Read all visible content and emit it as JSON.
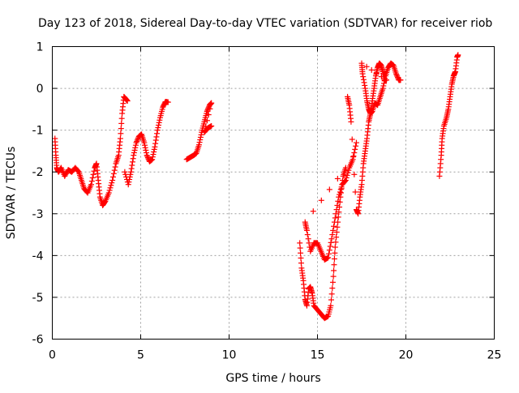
{
  "chart_data": {
    "type": "scatter",
    "title": "Day 123 of 2018, Sidereal Day-to-day VTEC variation (SDTVAR) for receiver riob",
    "xlabel": "GPS time / hours",
    "ylabel": "SDTVAR / TECUs",
    "xlim": [
      0,
      25
    ],
    "ylim": [
      -6,
      1
    ],
    "xticks": [
      0,
      5,
      10,
      15,
      20,
      25
    ],
    "yticks": [
      -6,
      -5,
      -4,
      -3,
      -2,
      -1,
      0,
      1
    ],
    "xtick_labels": [
      "0",
      "5",
      "10",
      "15",
      "20",
      "25"
    ],
    "ytick_labels": [
      "-6",
      "-5",
      "-4",
      "-3",
      "-2",
      "-1",
      "0",
      "1"
    ],
    "grid": true,
    "marker": "+",
    "series_color": "#ff0000",
    "series": [
      {
        "name": "SDTVAR",
        "segments": [
          [
            [
              0.15,
              -1.2
            ],
            [
              0.2,
              -1.6
            ],
            [
              0.25,
              -1.9
            ],
            [
              0.35,
              -2.0
            ],
            [
              0.5,
              -1.9
            ],
            [
              0.7,
              -2.1
            ],
            [
              0.9,
              -1.95
            ],
            [
              1.1,
              -2.0
            ],
            [
              1.3,
              -1.9
            ],
            [
              1.5,
              -2.0
            ],
            [
              1.65,
              -2.2
            ],
            [
              1.8,
              -2.4
            ],
            [
              2.0,
              -2.5
            ],
            [
              2.2,
              -2.3
            ],
            [
              2.4,
              -1.9
            ],
            [
              2.5,
              -1.8
            ],
            [
              2.6,
              -2.2
            ],
            [
              2.7,
              -2.6
            ],
            [
              2.85,
              -2.8
            ],
            [
              3.0,
              -2.7
            ],
            [
              3.2,
              -2.5
            ],
            [
              3.4,
              -2.2
            ],
            [
              3.6,
              -1.8
            ],
            [
              3.75,
              -1.6
            ],
            [
              3.85,
              -1.2
            ],
            [
              3.95,
              -0.6
            ],
            [
              4.05,
              -0.2
            ],
            [
              4.15,
              -0.25
            ],
            [
              4.25,
              -0.3
            ]
          ],
          [
            [
              4.1,
              -2.0
            ],
            [
              4.3,
              -2.3
            ],
            [
              4.45,
              -2.0
            ],
            [
              4.6,
              -1.6
            ],
            [
              4.75,
              -1.3
            ],
            [
              4.9,
              -1.15
            ],
            [
              5.05,
              -1.1
            ],
            [
              5.2,
              -1.3
            ],
            [
              5.35,
              -1.6
            ],
            [
              5.5,
              -1.75
            ],
            [
              5.65,
              -1.7
            ],
            [
              5.8,
              -1.4
            ],
            [
              5.95,
              -1.0
            ],
            [
              6.1,
              -0.7
            ],
            [
              6.25,
              -0.45
            ],
            [
              6.4,
              -0.32
            ],
            [
              6.55,
              -0.33
            ]
          ],
          [
            [
              7.6,
              -1.7
            ],
            [
              7.8,
              -1.65
            ],
            [
              8.0,
              -1.6
            ],
            [
              8.15,
              -1.55
            ],
            [
              8.3,
              -1.35
            ],
            [
              8.45,
              -1.05
            ],
            [
              8.6,
              -0.8
            ],
            [
              8.75,
              -0.55
            ],
            [
              8.9,
              -0.4
            ],
            [
              9.0,
              -0.35
            ],
            [
              8.6,
              -1.05
            ],
            [
              8.8,
              -0.95
            ],
            [
              9.0,
              -0.9
            ]
          ],
          [
            [
              14.0,
              -3.7
            ],
            [
              14.1,
              -4.3
            ],
            [
              14.2,
              -4.6
            ],
            [
              14.3,
              -5.05
            ],
            [
              14.4,
              -5.2
            ],
            [
              14.5,
              -4.8
            ],
            [
              14.6,
              -4.75
            ],
            [
              14.7,
              -4.9
            ],
            [
              14.8,
              -5.2
            ],
            [
              15.0,
              -5.3
            ],
            [
              15.2,
              -5.4
            ],
            [
              15.4,
              -5.5
            ],
            [
              15.6,
              -5.45
            ],
            [
              15.75,
              -5.2
            ],
            [
              15.9,
              -4.5
            ],
            [
              16.0,
              -3.8
            ],
            [
              16.15,
              -3.2
            ],
            [
              16.3,
              -2.6
            ],
            [
              16.45,
              -2.1
            ],
            [
              16.6,
              -1.9
            ],
            [
              14.3,
              -3.2
            ],
            [
              14.4,
              -3.4
            ],
            [
              14.6,
              -3.9
            ],
            [
              14.8,
              -3.7
            ],
            [
              15.0,
              -3.7
            ],
            [
              15.2,
              -3.9
            ],
            [
              15.4,
              -4.1
            ],
            [
              15.6,
              -4.05
            ],
            [
              15.8,
              -3.6
            ],
            [
              16.0,
              -3.1
            ],
            [
              16.2,
              -2.6
            ],
            [
              16.4,
              -2.3
            ],
            [
              16.6,
              -2.2
            ],
            [
              16.8,
              -1.9
            ],
            [
              17.0,
              -1.7
            ],
            [
              17.2,
              -1.3
            ]
          ],
          [
            [
              16.7,
              -0.2
            ],
            [
              16.8,
              -0.4
            ],
            [
              16.9,
              -0.8
            ],
            [
              17.2,
              -2.9
            ],
            [
              17.3,
              -3.0
            ],
            [
              17.4,
              -2.6
            ],
            [
              17.5,
              -2.3
            ],
            [
              17.6,
              -1.8
            ],
            [
              17.7,
              -1.5
            ],
            [
              17.8,
              -1.2
            ],
            [
              17.9,
              -0.8
            ],
            [
              18.0,
              -0.6
            ],
            [
              18.1,
              -0.3
            ],
            [
              18.2,
              0.0
            ],
            [
              18.3,
              0.3
            ],
            [
              18.4,
              0.5
            ],
            [
              18.5,
              0.6
            ],
            [
              18.6,
              0.55
            ],
            [
              18.7,
              0.4
            ],
            [
              18.8,
              0.2
            ],
            [
              18.9,
              0.2
            ],
            [
              17.5,
              0.6
            ],
            [
              17.55,
              0.35
            ],
            [
              17.7,
              0.0
            ],
            [
              17.8,
              -0.3
            ],
            [
              17.9,
              -0.5
            ],
            [
              18.0,
              -0.6
            ],
            [
              18.1,
              -0.55
            ],
            [
              18.25,
              -0.35
            ],
            [
              18.4,
              -0.4
            ],
            [
              18.55,
              -0.2
            ],
            [
              18.7,
              0.0
            ],
            [
              18.85,
              0.3
            ],
            [
              19.0,
              0.5
            ],
            [
              19.15,
              0.6
            ],
            [
              19.3,
              0.55
            ],
            [
              19.45,
              0.35
            ],
            [
              19.6,
              0.2
            ],
            [
              19.7,
              0.2
            ]
          ],
          [
            [
              21.9,
              -2.1
            ],
            [
              22.0,
              -1.6
            ],
            [
              22.05,
              -1.2
            ],
            [
              22.15,
              -0.9
            ],
            [
              22.3,
              -0.7
            ],
            [
              22.4,
              -0.5
            ],
            [
              22.5,
              -0.2
            ],
            [
              22.6,
              0.1
            ],
            [
              22.7,
              0.3
            ],
            [
              22.8,
              0.4
            ],
            [
              22.9,
              0.75
            ],
            [
              22.95,
              0.8
            ]
          ]
        ]
      }
    ]
  }
}
